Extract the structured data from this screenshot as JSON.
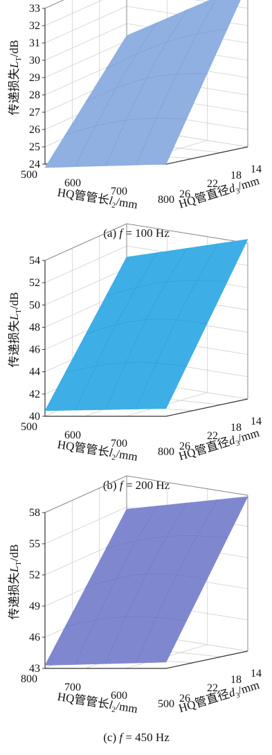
{
  "chart_data": [
    {
      "type": "surface",
      "caption": "(a) f = 100 Hz",
      "caption_parts": {
        "prefix": "(a) ",
        "var": "f",
        "rest": " = 100 Hz"
      },
      "zlabel": {
        "text": "传递损失",
        "sym": "L",
        "sub": "T",
        "unit": "/dB"
      },
      "xlabel": {
        "text": "HQ管管长",
        "sym": "l",
        "sub": "2",
        "unit": "/mm"
      },
      "ylabel": {
        "text": "HQ管直径",
        "sym": "d",
        "sub": "3",
        "unit": "/mm"
      },
      "x_ticks": [
        500,
        600,
        700,
        800
      ],
      "y_ticks": [
        14,
        18,
        22,
        26
      ],
      "z_ticks": [
        24,
        25,
        26,
        27,
        28,
        29,
        30,
        31,
        32,
        33
      ],
      "zlim": [
        24,
        33
      ],
      "surface_color": "#8fb0e0",
      "edge_color": "#7396cc",
      "corners": {
        "front_left": 23.8,
        "front_right": 24.0,
        "back_left": 29.3,
        "back_right": 32.3
      },
      "grid": true
    },
    {
      "type": "surface",
      "caption": "(b) f = 200 Hz",
      "caption_parts": {
        "prefix": "(b) ",
        "var": "f",
        "rest": " = 200 Hz"
      },
      "zlabel": {
        "text": "传递损失",
        "sym": "L",
        "sub": "T",
        "unit": "/dB"
      },
      "xlabel": {
        "text": "HQ管管长",
        "sym": "l",
        "sub": "2",
        "unit": "/mm"
      },
      "ylabel": {
        "text": "HQ管直径",
        "sym": "d",
        "sub": "3",
        "unit": "/mm"
      },
      "x_ticks": [
        500,
        600,
        700,
        800
      ],
      "y_ticks": [
        14,
        18,
        22,
        26
      ],
      "z_ticks": [
        40,
        42,
        44,
        46,
        48,
        50,
        52,
        54
      ],
      "zlim": [
        40,
        54
      ],
      "surface_color": "#3eaee6",
      "edge_color": "#2b96d2",
      "corners": {
        "front_left": 40.5,
        "front_right": 40.7,
        "back_left": 51.0,
        "back_right": 52.6
      },
      "grid": true
    },
    {
      "type": "surface",
      "caption": "(c) f = 450 Hz",
      "caption_parts": {
        "prefix": "(c) ",
        "var": "f",
        "rest": " = 450 Hz"
      },
      "zlabel": {
        "text": "传递损失",
        "sym": "L",
        "sub": "T",
        "unit": "/dB"
      },
      "xlabel": {
        "text": "HQ管管长",
        "sym": "l",
        "sub": "2",
        "unit": "/mm"
      },
      "ylabel": {
        "text": "HQ管直径",
        "sym": "d",
        "sub": "3",
        "unit": "/mm"
      },
      "x_ticks": [
        800,
        700,
        600,
        500
      ],
      "y_ticks": [
        14,
        18,
        22,
        26
      ],
      "z_ticks": [
        43,
        46,
        49,
        52,
        55,
        58
      ],
      "zlim": [
        43,
        58
      ],
      "surface_color": "#7f88cf",
      "edge_color": "#6770bd",
      "corners": {
        "front_left": 43.3,
        "front_right": 43.6,
        "back_left": 54.8,
        "back_right": 56.0
      },
      "grid": true
    }
  ]
}
